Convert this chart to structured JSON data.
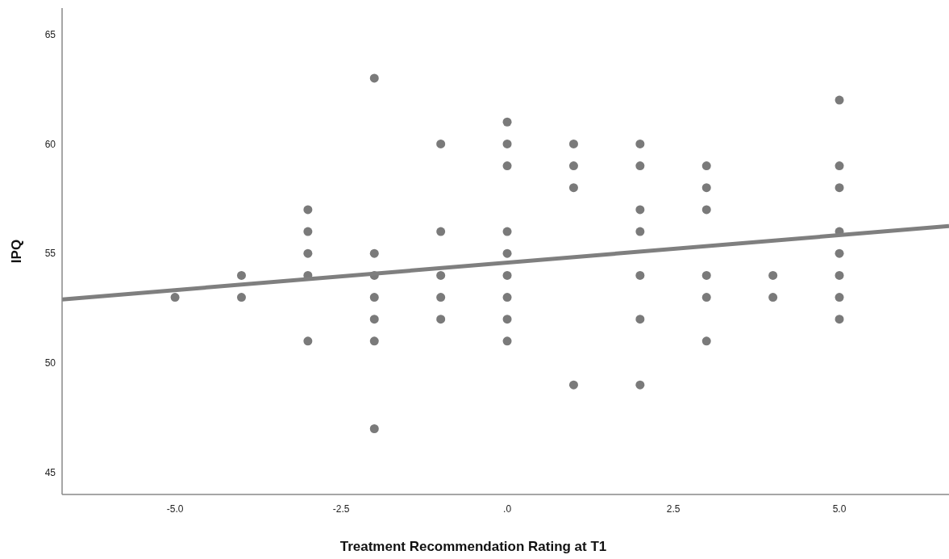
{
  "chart_data": {
    "type": "scatter",
    "xlabel": "Treatment Recommendation Rating at T1",
    "ylabel": "IPQ",
    "xlim": [
      -6.7,
      6.65
    ],
    "ylim": [
      44,
      66.2
    ],
    "xticks": [
      {
        "value": -5,
        "label": "-5.0"
      },
      {
        "value": -2.5,
        "label": "-2.5"
      },
      {
        "value": 0,
        "label": ".0"
      },
      {
        "value": 2.5,
        "label": "2.5"
      },
      {
        "value": 5,
        "label": "5.0"
      }
    ],
    "yticks": [
      45,
      50,
      55,
      60,
      65
    ],
    "grid": false,
    "series": [
      {
        "marker": "circle",
        "color": "#7a7a7a",
        "x": [
          -5,
          -4,
          -4,
          -3,
          -3,
          -3,
          -3,
          -3,
          -2,
          -2,
          -2,
          -2,
          -2,
          -2,
          -2,
          -1,
          -1,
          -1,
          -1,
          -1,
          0,
          0,
          0,
          0,
          0,
          0,
          0,
          0,
          0,
          1,
          1,
          1,
          1,
          2,
          2,
          2,
          2,
          2,
          2,
          2,
          3,
          3,
          3,
          3,
          3,
          3,
          4,
          4,
          5,
          5,
          5,
          5,
          5,
          5,
          5,
          5
        ],
        "values": [
          53,
          54,
          53,
          57,
          56,
          55,
          54,
          51,
          63,
          55,
          54,
          53,
          52,
          51,
          47,
          60,
          56,
          54,
          53,
          52,
          61,
          60,
          59,
          56,
          55,
          54,
          53,
          52,
          51,
          60,
          59,
          58,
          49,
          60,
          59,
          57,
          56,
          54,
          52,
          49,
          59,
          58,
          57,
          54,
          53,
          51,
          54,
          53,
          62,
          59,
          58,
          56,
          55,
          54,
          53,
          52
        ]
      },
      {
        "type": "line",
        "color": "#7f7f7f",
        "line_style": "solid",
        "x": [
          -6.7,
          6.65
        ],
        "values": [
          52.9,
          56.25
        ]
      }
    ]
  }
}
